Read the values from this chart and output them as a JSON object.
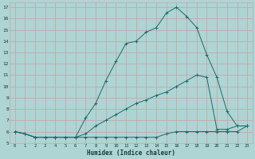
{
  "xlabel": "Humidex (Indice chaleur)",
  "background_color": "#aed4d4",
  "grid_color": "#c4a8a8",
  "line_color": "#1a6b6b",
  "xlim": [
    -0.5,
    23.5
  ],
  "ylim": [
    5,
    17.4
  ],
  "xticks": [
    0,
    1,
    2,
    3,
    4,
    5,
    6,
    7,
    8,
    9,
    10,
    11,
    12,
    13,
    14,
    15,
    16,
    17,
    18,
    19,
    20,
    21,
    22,
    23
  ],
  "yticks": [
    5,
    6,
    7,
    8,
    9,
    10,
    11,
    12,
    13,
    14,
    15,
    16,
    17
  ],
  "series1_x": [
    0,
    1,
    2,
    3,
    4,
    5,
    6,
    7,
    8,
    9,
    10,
    11,
    12,
    13,
    14,
    15,
    16,
    17,
    18,
    19,
    20,
    21,
    22,
    23
  ],
  "series1_y": [
    6.0,
    5.8,
    5.5,
    5.5,
    5.5,
    5.5,
    5.5,
    5.5,
    5.5,
    5.5,
    5.5,
    5.5,
    5.5,
    5.5,
    5.5,
    5.8,
    6.0,
    6.0,
    6.0,
    6.0,
    6.0,
    6.0,
    6.0,
    6.5
  ],
  "series2_x": [
    0,
    1,
    2,
    3,
    4,
    5,
    6,
    7,
    8,
    9,
    10,
    11,
    12,
    13,
    14,
    15,
    16,
    17,
    18,
    19,
    20,
    21,
    22,
    23
  ],
  "series2_y": [
    6.0,
    5.8,
    5.5,
    5.5,
    5.5,
    5.5,
    5.5,
    7.2,
    8.5,
    10.5,
    12.2,
    13.8,
    14.0,
    14.8,
    15.2,
    16.5,
    17.0,
    16.2,
    15.2,
    12.8,
    10.8,
    7.8,
    6.5,
    6.5
  ],
  "series3_x": [
    0,
    1,
    2,
    3,
    4,
    5,
    6,
    7,
    8,
    9,
    10,
    11,
    12,
    13,
    14,
    15,
    16,
    17,
    18,
    19,
    20,
    21,
    22,
    23
  ],
  "series3_y": [
    6.0,
    5.8,
    5.5,
    5.5,
    5.5,
    5.5,
    5.5,
    5.8,
    6.5,
    7.0,
    7.5,
    8.0,
    8.5,
    8.8,
    9.2,
    9.5,
    10.0,
    10.5,
    11.0,
    10.8,
    6.2,
    6.2,
    6.5,
    6.5
  ]
}
